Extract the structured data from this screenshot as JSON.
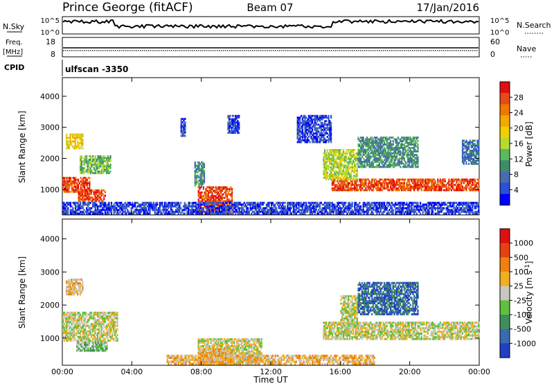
{
  "header": {
    "station": "Prince George (fitACF)",
    "beam": "Beam 07",
    "date": "17/Jan/2016"
  },
  "strip_labels": {
    "nsky": "N.Sky",
    "nsky_ticks": [
      "10^5",
      "10^0"
    ],
    "nsearch": "N.Search",
    "nsearch_ticks": [
      "10^5",
      "10^0"
    ],
    "freq": "Freq.",
    "freq_unit": "[MHz]",
    "freq_ticks": [
      "18",
      "8"
    ],
    "nave": "Nave",
    "nave_ticks": [
      "60",
      "0"
    ],
    "cpid": "CPID",
    "cpid_value": "ulfscan -3350"
  },
  "chart_data": [
    {
      "type": "heatmap",
      "name": "power",
      "ylabel": "Slant Range [km]",
      "yticks": [
        "1000",
        "2000",
        "3000",
        "4000"
      ],
      "ylim": [
        180,
        4600
      ],
      "xlim_hours": [
        0,
        24
      ],
      "xticks": [
        "00:00",
        "04:00",
        "08:00",
        "12:00",
        "16:00",
        "20:00",
        "00:00"
      ],
      "colorbar": {
        "label": "Power [dB]",
        "ticks": [
          "4",
          "8",
          "12",
          "16",
          "20",
          "24",
          "28"
        ],
        "colors": [
          "#0000ff",
          "#2b4fd6",
          "#4b6bb0",
          "#3e8c6a",
          "#5cb85c",
          "#b7d932",
          "#f0d000",
          "#f5a800",
          "#f07800",
          "#e84a1a",
          "#e01010"
        ]
      },
      "regions": [
        {
          "h0": 0.0,
          "h1": 1.6,
          "r0": 900,
          "r1": 1400,
          "level": 9
        },
        {
          "h0": 0.2,
          "h1": 1.2,
          "r0": 2300,
          "r1": 2800,
          "level": 6
        },
        {
          "h0": 0.9,
          "h1": 2.5,
          "r0": 600,
          "r1": 1000,
          "level": 9
        },
        {
          "h0": 1.0,
          "h1": 2.8,
          "r0": 1500,
          "r1": 2100,
          "level": 4
        },
        {
          "h0": 7.8,
          "h1": 9.8,
          "r0": 200,
          "r1": 1100,
          "level": 9
        },
        {
          "h0": 7.6,
          "h1": 8.2,
          "r0": 1100,
          "r1": 1900,
          "level": 3
        },
        {
          "h0": 6.8,
          "h1": 7.1,
          "r0": 2700,
          "r1": 3300,
          "level": 1
        },
        {
          "h0": 9.5,
          "h1": 10.2,
          "r0": 2800,
          "r1": 3400,
          "level": 1
        },
        {
          "h0": 13.5,
          "h1": 15.5,
          "r0": 2500,
          "r1": 3400,
          "level": 1
        },
        {
          "h0": 15.5,
          "h1": 24.0,
          "r0": 950,
          "r1": 1350,
          "level": 9
        },
        {
          "h0": 15.0,
          "h1": 17.0,
          "r0": 1300,
          "r1": 2300,
          "level": 5
        },
        {
          "h0": 17.0,
          "h1": 20.5,
          "r0": 1700,
          "r1": 2700,
          "level": 3
        },
        {
          "h0": 23.0,
          "h1": 24.0,
          "r0": 1800,
          "r1": 2600,
          "level": 2
        },
        {
          "h0": 0.0,
          "h1": 24.0,
          "r0": 200,
          "r1": 600,
          "level": 1
        }
      ]
    },
    {
      "type": "heatmap",
      "name": "velocity",
      "ylabel": "Slant Range [km]",
      "yticks": [
        "1000",
        "2000",
        "3000",
        "4000"
      ],
      "ylim": [
        180,
        4600
      ],
      "xlim_hours": [
        0,
        24
      ],
      "xticks": [
        "00:00",
        "04:00",
        "08:00",
        "12:00",
        "16:00",
        "20:00",
        "00:00"
      ],
      "xlabel": "Time UT",
      "colorbar": {
        "label": "Velocity [m s^-1]",
        "ticks": [
          "1000",
          "500",
          "100",
          "25",
          "-25",
          "-100",
          "-500",
          "-1000"
        ],
        "colors": [
          "#2040c0",
          "#3a6ab0",
          "#3f8f5a",
          "#60c040",
          "#c8c8c0",
          "#f0b020",
          "#f08010",
          "#e84010",
          "#e01010"
        ]
      },
      "regions": [
        {
          "h0": 0.0,
          "h1": 3.2,
          "r0": 900,
          "r1": 1800,
          "level": 4
        },
        {
          "h0": 0.8,
          "h1": 2.6,
          "r0": 600,
          "r1": 900,
          "level": 3
        },
        {
          "h0": 0.2,
          "h1": 1.2,
          "r0": 2300,
          "r1": 2800,
          "level": 5
        },
        {
          "h0": 7.8,
          "h1": 11.5,
          "r0": 200,
          "r1": 1000,
          "level": 4
        },
        {
          "h0": 7.8,
          "h1": 9.8,
          "r0": 200,
          "r1": 700,
          "level": 5
        },
        {
          "h0": 15.0,
          "h1": 24.0,
          "r0": 950,
          "r1": 1500,
          "level": 4
        },
        {
          "h0": 16.0,
          "h1": 17.0,
          "r0": 1300,
          "r1": 2300,
          "level": 4
        },
        {
          "h0": 17.0,
          "h1": 20.5,
          "r0": 1700,
          "r1": 2700,
          "level": 1
        },
        {
          "h0": 6.0,
          "h1": 18.0,
          "r0": 200,
          "r1": 500,
          "level": 5
        }
      ]
    }
  ]
}
